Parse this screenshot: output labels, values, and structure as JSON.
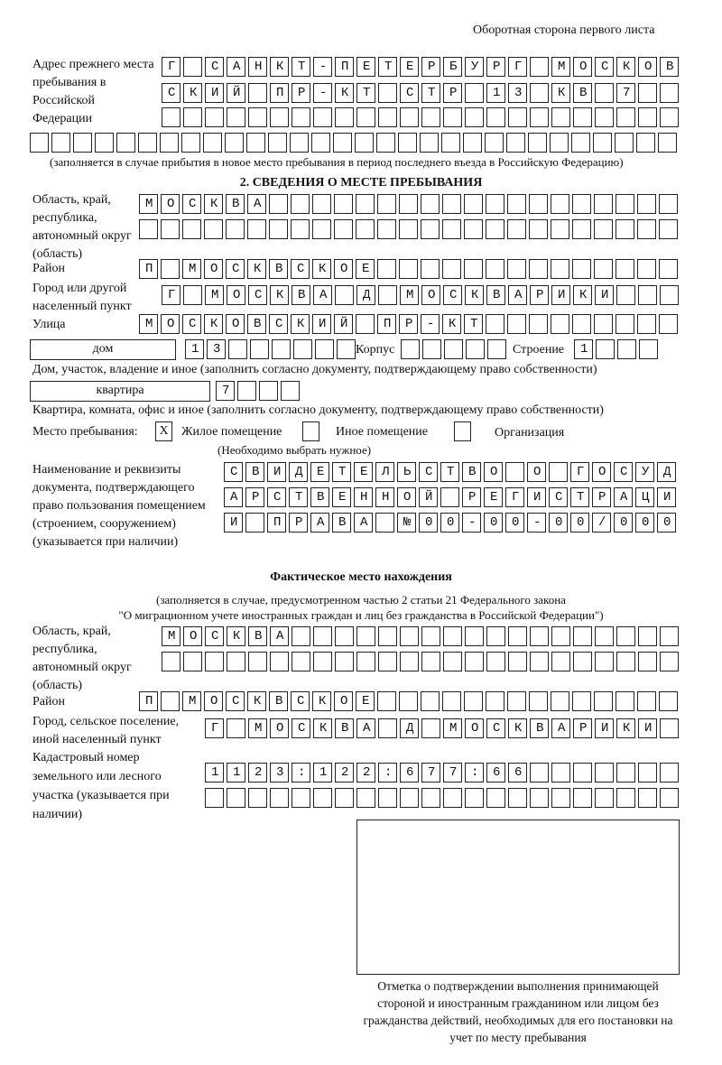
{
  "header": {
    "page_side": "Оборотная сторона первого листа"
  },
  "previous_address": {
    "label": "Адрес прежнего места пребывания в Российской Федерации",
    "rows": [
      "Г САНКТ-ПЕТЕРБУРГ МОСКОВ",
      "СКИЙ ПР-КТ СТР 13 КВ 7  ",
      "",
      ""
    ],
    "note": "(заполняется в случае прибытия в новое место пребывания в период последнего въезда в Российскую Федерацию)"
  },
  "section2": {
    "title": "2. СВЕДЕНИЯ О МЕСТЕ ПРЕБЫВАНИЯ",
    "region_label": "Область, край, республика, автономный округ (область)",
    "region_rows": [
      "МОСКВА",
      ""
    ],
    "district_label": "Район",
    "district": "П МОСКВСКОЕ",
    "city_label": "Город или другой населенный пункт",
    "city": "Г МОСКВА Д МОСКВАРИКИ",
    "street_label": "Улица",
    "street": "МОСКОВСКИЙ ПР-КТ",
    "house_type": "дом",
    "house_number": "13",
    "building_label": "Корпус",
    "building": "",
    "structure_label": "Строение",
    "structure": "1",
    "house_note": "Дом, участок, владение и иное (заполнить согласно документу, подтверждающему право собственности)",
    "apartment_type": "квартира",
    "apartment": "7",
    "apartment_note": "Квартира, комната, офис и иное (заполнить согласно документу, подтверждающему право собственности)",
    "stay_place_label": "Место пребывания:",
    "options": [
      {
        "label": "Жилое помещение",
        "mark": "X"
      },
      {
        "label": "Иное помещение",
        "mark": ""
      },
      {
        "label": "Организация",
        "mark": ""
      }
    ],
    "choose_note": "(Необходимо выбрать нужное)",
    "document_label": "Наименование и реквизиты документа, подтверждающего право пользования помещением (строением, сооружением) (указывается при наличии)",
    "document_rows": [
      "СВИДЕТЕЛЬСТВО О ГОСУД",
      "АРСТВЕННОЙ РЕГИСТРАЦИ",
      "И ПРАВА №00-00-00/000"
    ]
  },
  "actual": {
    "title": "Фактическое место нахождения",
    "note_line1": "(заполняется в случае, предусмотренном частью 2 статьи 21 Федерального закона",
    "note_line2": "\"О миграционном учете иностранных граждан и лиц без гражданства в Российской Федерации\")",
    "region_label": "Область, край, республика, автономный округ (область)",
    "region_rows": [
      "МОСКВА",
      ""
    ],
    "district_label": "Район",
    "district": "П МОСКВСКОЕ",
    "city_label": "Город, сельское поселение, иной населенный пункт",
    "city": "Г МОСКВА Д МОСКВАРИКИ",
    "cadastral_label": "Кадастровый номер земельного или лесного участка (указывается при наличии)",
    "cadastral_rows": [
      "1123:122:677:66",
      ""
    ]
  },
  "confirmation": {
    "caption": "Отметка о подтверждении выполнения принимающей стороной и иностранным гражданином или лицом без гражданства действий, необходимых для его постановки на учет по месту пребывания"
  }
}
